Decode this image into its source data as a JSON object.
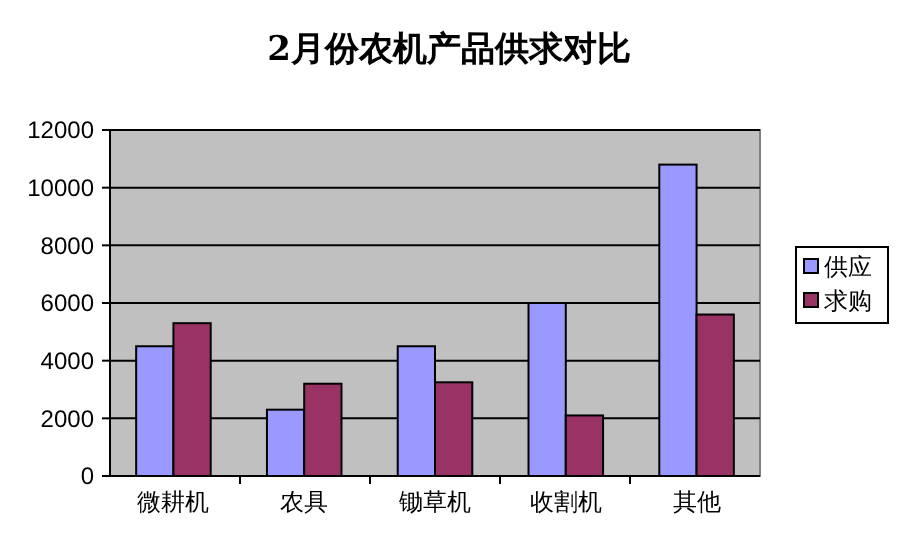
{
  "chart_data": {
    "type": "bar",
    "title": "2月份农机产品供求对比",
    "categories": [
      "微耕机",
      "农具",
      "锄草机",
      "收割机",
      "其他"
    ],
    "series": [
      {
        "name": "供应",
        "color": "#9999ff",
        "values": [
          4500,
          2300,
          4500,
          6000,
          10800
        ]
      },
      {
        "name": "求购",
        "color": "#993366",
        "values": [
          5300,
          3200,
          3250,
          2100,
          5600
        ]
      }
    ],
    "ylim": [
      0,
      12000
    ],
    "yticks": [
      0,
      2000,
      4000,
      6000,
      8000,
      10000,
      12000
    ],
    "grid": "y",
    "legend": "right"
  }
}
